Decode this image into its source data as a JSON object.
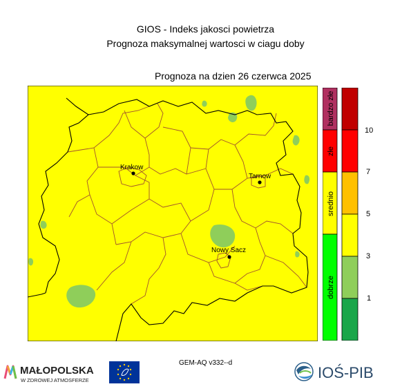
{
  "header": {
    "line1": "GIOS - Indeks jakosci powietrza",
    "line2": "Prognoza maksymalnej wartosci w ciagu doby",
    "date_line": "Prognoza na dzien  26 czerwca 2025"
  },
  "map": {
    "cities": [
      {
        "name": "Krakow"
      },
      {
        "name": "Tarnow"
      },
      {
        "name": "Nowy Sacz"
      }
    ],
    "background_color": "#ffff00",
    "patch_color": "#8fce5a"
  },
  "legend": {
    "categories": [
      {
        "label": "bardzo złe",
        "color": "#b03060"
      },
      {
        "label": "złe",
        "color": "#ff0000"
      },
      {
        "label": "srednio",
        "color": "#ffff00"
      },
      {
        "label": "dobrze",
        "color": "#00ff00"
      }
    ],
    "scale_colors": [
      "#1aa64a",
      "#8fce5a",
      "#ffff00",
      "#ffc000",
      "#ff0000",
      "#c00000"
    ],
    "ticks": [
      "10",
      "7",
      "5",
      "3",
      "1"
    ]
  },
  "footer": {
    "model": "GEM-AQ v332--d",
    "logo_left_main": "MAŁOPOLSKA",
    "logo_left_sub": "W ZDROWEJ ATMOSFERZE",
    "logo_right": "IOŚ-PIB"
  }
}
